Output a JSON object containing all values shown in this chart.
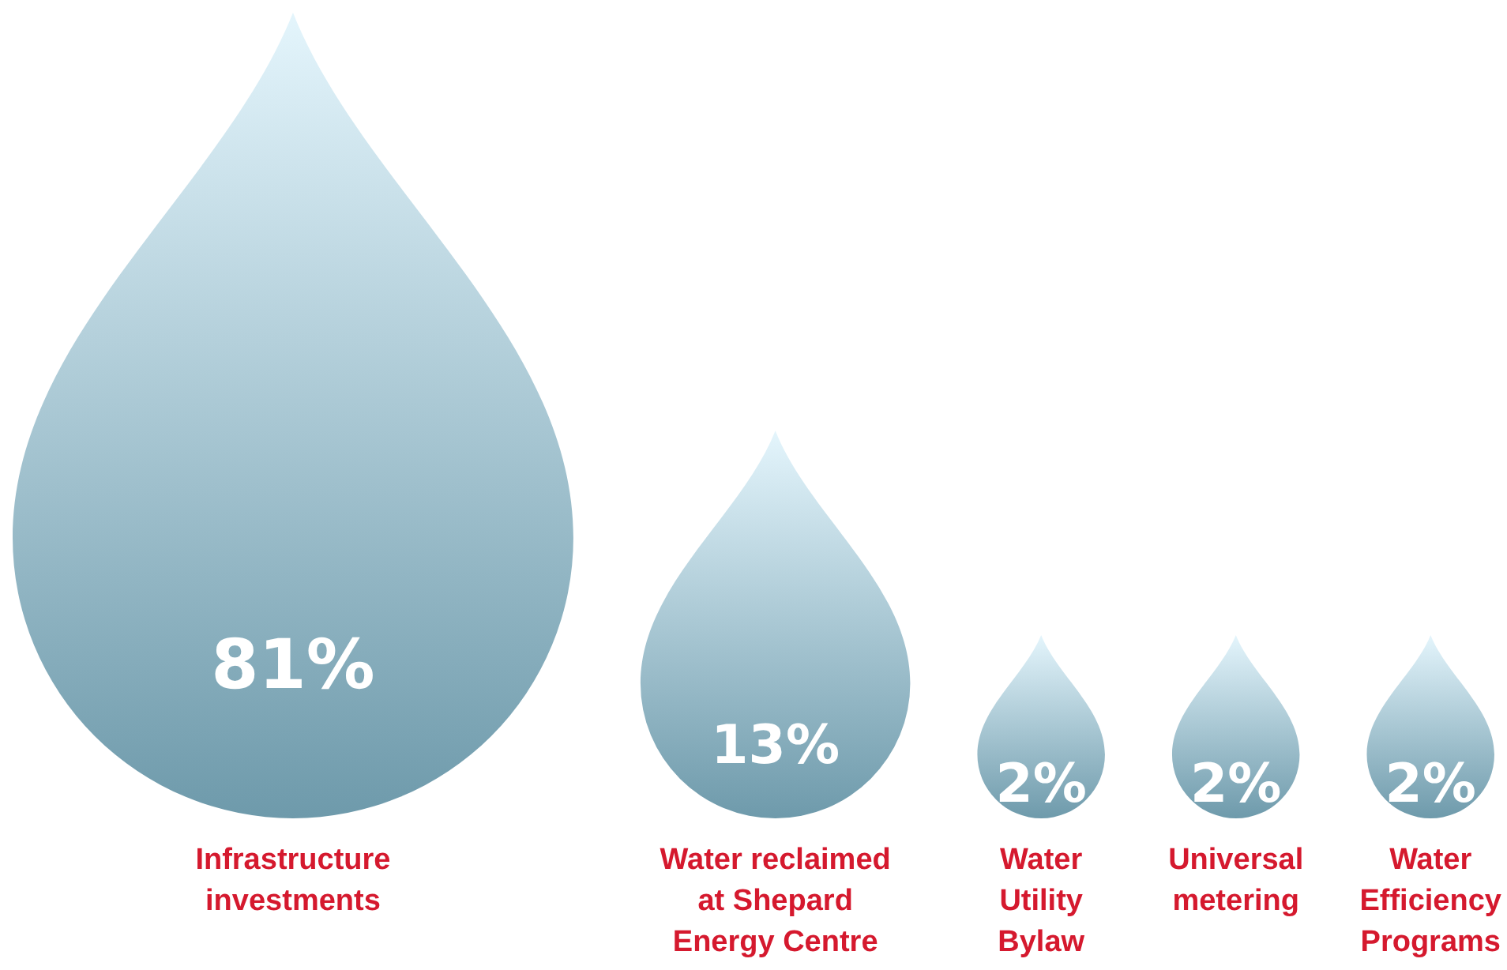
{
  "chart_data": {
    "type": "other",
    "categories": [
      "Infrastructure investments",
      "Water reclaimed at Shepard Energy Centre",
      "Water Utility Bylaw",
      "Universal metering",
      "Water Efficiency Programs"
    ],
    "values": [
      81,
      13,
      2,
      2,
      2
    ],
    "value_labels": [
      "81%",
      "13%",
      "2%",
      "2%",
      "2%"
    ],
    "colors": [
      "#6e9aab",
      "#6e9aab",
      "#6e9aab",
      "#6e9aab",
      "#6e9aab"
    ]
  }
}
